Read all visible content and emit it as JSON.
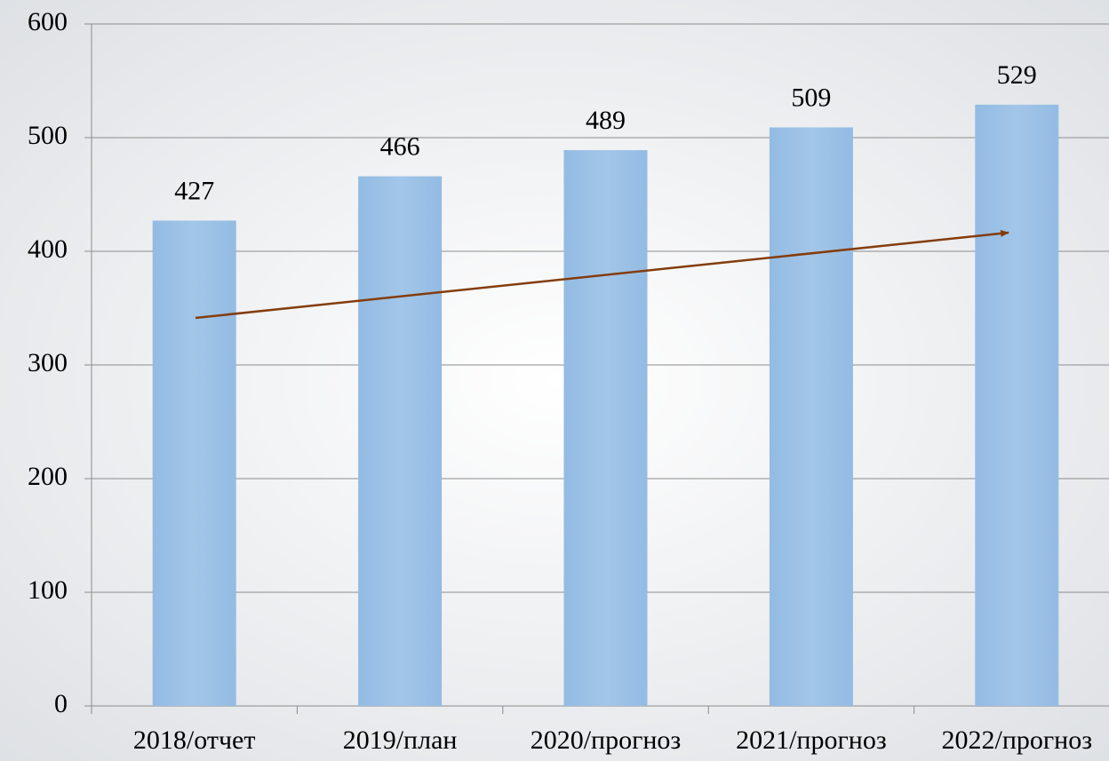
{
  "chart_data": {
    "type": "bar",
    "categories": [
      "2018/отчет",
      "2019/план",
      "2020/прогноз",
      "2021/прогноз",
      "2022/прогноз"
    ],
    "values": [
      427,
      466,
      489,
      509,
      529
    ],
    "color": "#9dc3e6",
    "ylim": [
      0,
      600
    ],
    "yticks": [
      0,
      100,
      200,
      300,
      400,
      500,
      600
    ],
    "grid": true
  }
}
